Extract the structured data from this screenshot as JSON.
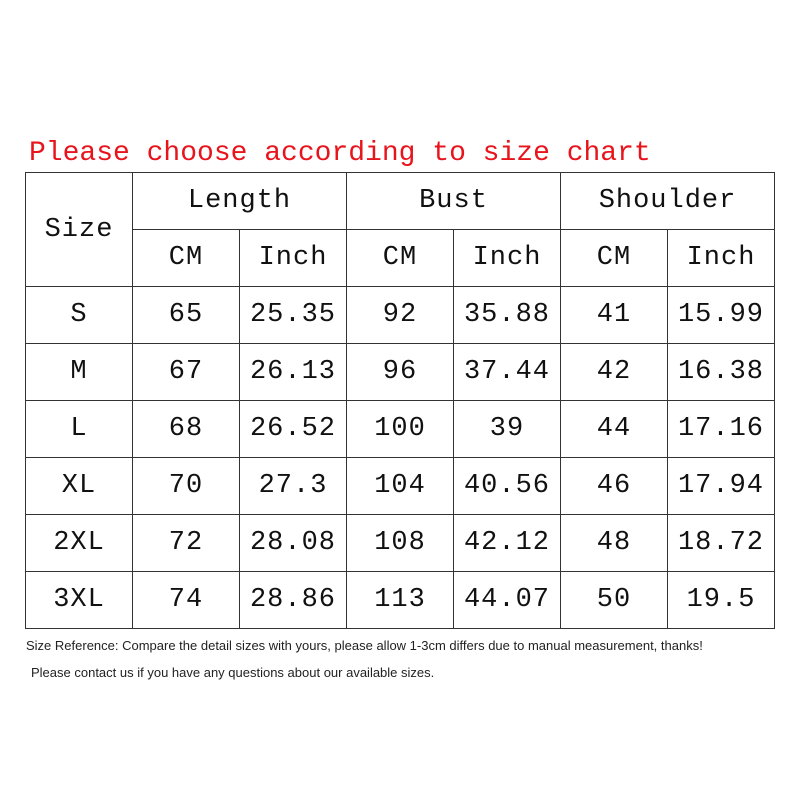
{
  "title": "Please choose according to size chart",
  "table": {
    "size_header": "Size",
    "groups": [
      "Length",
      "Bust",
      "Shoulder"
    ],
    "units": [
      "CM",
      "Inch",
      "CM",
      "Inch",
      "CM",
      "Inch"
    ],
    "rows": [
      [
        "S",
        "65",
        "25.35",
        "92",
        "35.88",
        "41",
        "15.99"
      ],
      [
        "M",
        "67",
        "26.13",
        "96",
        "37.44",
        "42",
        "16.38"
      ],
      [
        "L",
        "68",
        "26.52",
        "100",
        "39",
        "44",
        "17.16"
      ],
      [
        "XL",
        "70",
        "27.3",
        "104",
        "40.56",
        "46",
        "17.94"
      ],
      [
        "2XL",
        "72",
        "28.08",
        "108",
        "42.12",
        "48",
        "18.72"
      ],
      [
        "3XL",
        "74",
        "28.86",
        "113",
        "44.07",
        "50",
        "19.5"
      ]
    ]
  },
  "notes": {
    "reference": "Size Reference: Compare the detail sizes with yours, please allow 1-3cm differs due to manual measurement, thanks!",
    "contact": "Please contact us if you have any questions about our available sizes."
  },
  "colors": {
    "title": "#e8141c",
    "border": "#333333"
  }
}
